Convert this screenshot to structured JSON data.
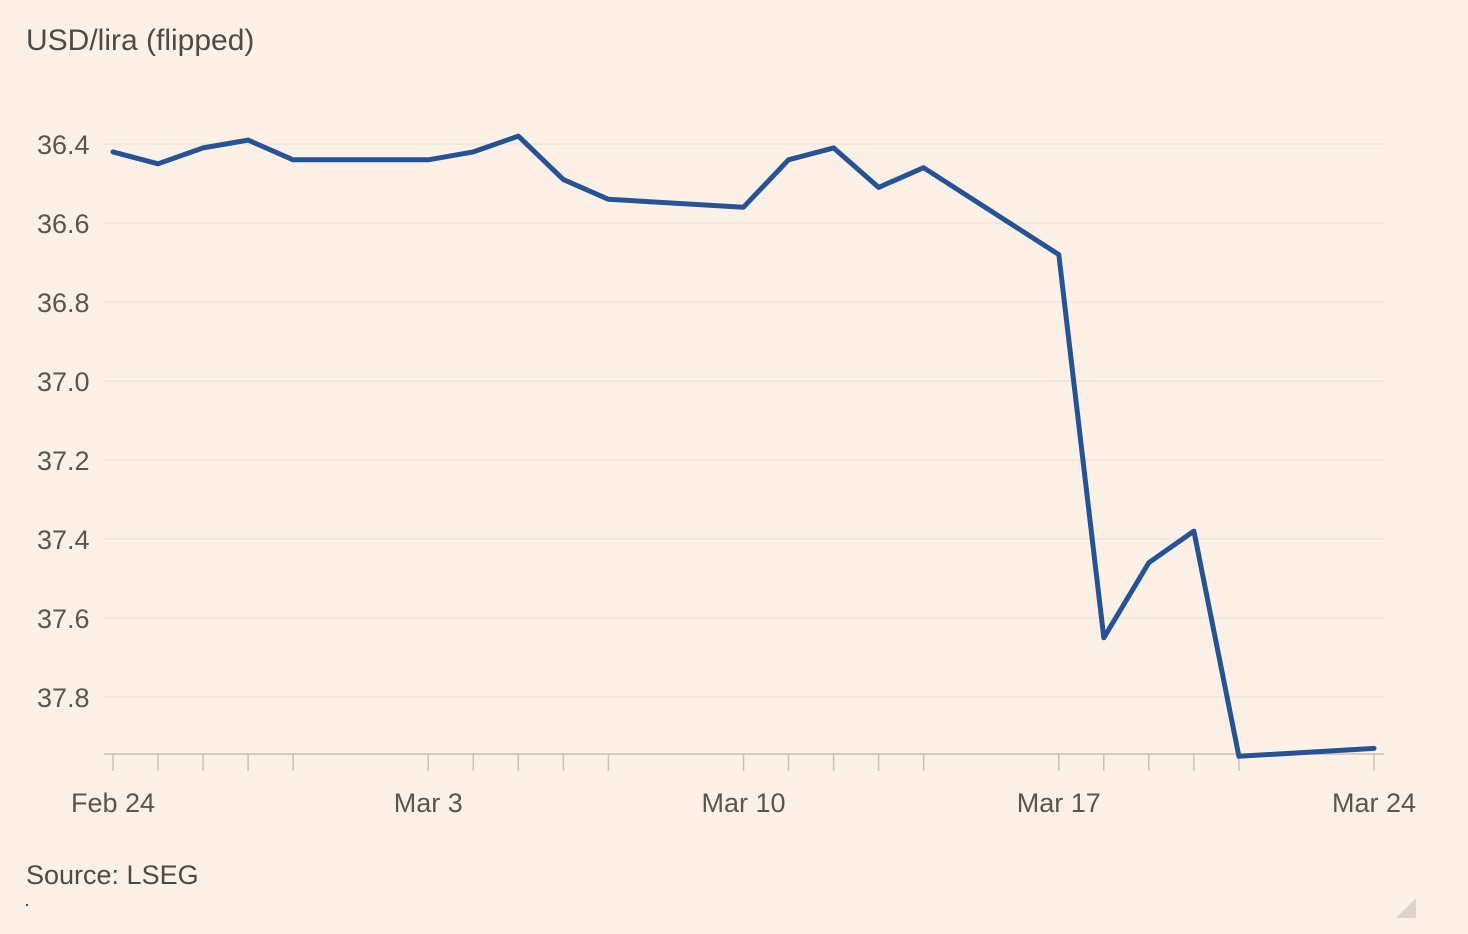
{
  "chart_data": {
    "type": "line",
    "title": "USD/lira (flipped)",
    "source": "Source: LSEG",
    "xlabel": "",
    "ylabel": "",
    "y_inverted": true,
    "ylim": [
      36.3,
      37.95
    ],
    "yticks": [
      36.4,
      36.6,
      36.8,
      37.0,
      37.2,
      37.4,
      37.6,
      37.8
    ],
    "ytick_labels": [
      "36.4",
      "36.6",
      "36.8",
      "37.0",
      "37.2",
      "37.4",
      "37.6",
      "37.8"
    ],
    "xlim": [
      "2025-02-24",
      "2025-03-24"
    ],
    "xtick_labels": [
      {
        "date": "2025-02-24",
        "label": "Feb 24"
      },
      {
        "date": "2025-03-03",
        "label": "Mar 3"
      },
      {
        "date": "2025-03-10",
        "label": "Mar 10"
      },
      {
        "date": "2025-03-17",
        "label": "Mar 17"
      },
      {
        "date": "2025-03-24",
        "label": "Mar 24"
      }
    ],
    "grid": true,
    "color": "#265396",
    "series": [
      {
        "x": [
          "2025-02-24",
          "2025-02-25",
          "2025-02-26",
          "2025-02-27",
          "2025-02-28",
          "2025-03-03",
          "2025-03-04",
          "2025-03-05",
          "2025-03-06",
          "2025-03-07",
          "2025-03-10",
          "2025-03-11",
          "2025-03-12",
          "2025-03-13",
          "2025-03-14",
          "2025-03-17",
          "2025-03-18",
          "2025-03-19",
          "2025-03-20",
          "2025-03-21",
          "2025-03-24"
        ],
        "values": [
          36.42,
          36.45,
          36.41,
          36.39,
          36.44,
          36.44,
          36.42,
          36.38,
          36.49,
          36.54,
          36.56,
          36.44,
          36.41,
          36.51,
          36.46,
          36.68,
          37.65,
          37.46,
          37.38,
          37.95,
          37.93
        ]
      }
    ]
  }
}
